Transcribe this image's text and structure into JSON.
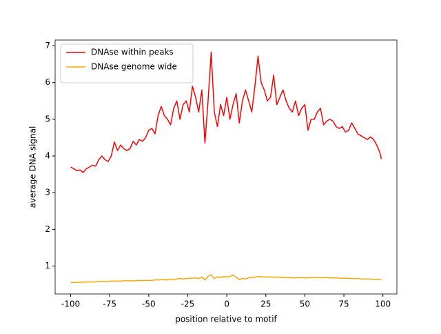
{
  "chart_data": {
    "type": "line",
    "xlabel": "position relative to motif",
    "ylabel": "average DNA signal",
    "x": [
      -100,
      -98,
      -96,
      -94,
      -92,
      -90,
      -88,
      -86,
      -84,
      -82,
      -80,
      -78,
      -76,
      -74,
      -72,
      -70,
      -68,
      -66,
      -64,
      -62,
      -60,
      -58,
      -56,
      -54,
      -52,
      -50,
      -48,
      -46,
      -44,
      -42,
      -40,
      -38,
      -36,
      -34,
      -32,
      -30,
      -28,
      -26,
      -24,
      -22,
      -20,
      -18,
      -16,
      -14,
      -12,
      -10,
      -8,
      -6,
      -4,
      -2,
      0,
      2,
      4,
      6,
      8,
      10,
      12,
      14,
      16,
      18,
      20,
      22,
      24,
      26,
      28,
      30,
      32,
      34,
      36,
      38,
      40,
      42,
      44,
      46,
      48,
      50,
      52,
      54,
      56,
      58,
      60,
      62,
      64,
      66,
      68,
      70,
      72,
      74,
      76,
      78,
      80,
      82,
      84,
      86,
      88,
      90,
      92,
      94,
      96,
      98,
      99
    ],
    "series": [
      {
        "name": "DNAse within peaks",
        "color": "#ff0000",
        "values": [
          3.7,
          3.65,
          3.6,
          3.62,
          3.55,
          3.65,
          3.7,
          3.75,
          3.72,
          3.9,
          4.0,
          3.9,
          3.85,
          4.0,
          4.38,
          4.15,
          4.3,
          4.2,
          4.15,
          4.2,
          4.4,
          4.3,
          4.45,
          4.4,
          4.5,
          4.7,
          4.75,
          4.6,
          5.1,
          5.35,
          5.1,
          5.0,
          4.85,
          5.3,
          5.5,
          5.0,
          5.4,
          5.5,
          5.2,
          5.9,
          5.6,
          5.2,
          5.8,
          4.35,
          5.5,
          6.83,
          5.2,
          4.8,
          5.4,
          5.1,
          5.6,
          5.0,
          5.4,
          5.7,
          4.9,
          5.5,
          5.8,
          5.5,
          5.2,
          5.9,
          6.72,
          6.0,
          5.8,
          5.5,
          5.6,
          6.2,
          5.4,
          5.6,
          5.8,
          5.5,
          5.3,
          5.2,
          5.5,
          5.1,
          5.3,
          5.4,
          4.7,
          5.0,
          5.0,
          5.2,
          5.3,
          4.85,
          4.95,
          5.0,
          4.95,
          4.8,
          4.75,
          4.8,
          4.65,
          4.7,
          4.9,
          4.75,
          4.6,
          4.55,
          4.5,
          4.45,
          4.52,
          4.45,
          4.3,
          4.1,
          3.92
        ]
      },
      {
        "name": "DNAse genome wide",
        "color": "#ffa500",
        "values": [
          0.55,
          0.55,
          0.56,
          0.56,
          0.56,
          0.57,
          0.57,
          0.57,
          0.57,
          0.58,
          0.58,
          0.58,
          0.58,
          0.59,
          0.59,
          0.59,
          0.59,
          0.6,
          0.6,
          0.6,
          0.6,
          0.6,
          0.61,
          0.61,
          0.61,
          0.61,
          0.61,
          0.62,
          0.62,
          0.63,
          0.63,
          0.62,
          0.64,
          0.64,
          0.65,
          0.66,
          0.65,
          0.66,
          0.67,
          0.67,
          0.68,
          0.66,
          0.7,
          0.62,
          0.72,
          0.76,
          0.66,
          0.71,
          0.68,
          0.72,
          0.7,
          0.72,
          0.75,
          0.7,
          0.63,
          0.66,
          0.65,
          0.68,
          0.7,
          0.69,
          0.72,
          0.71,
          0.7,
          0.7,
          0.71,
          0.69,
          0.7,
          0.7,
          0.69,
          0.69,
          0.69,
          0.68,
          0.68,
          0.69,
          0.69,
          0.68,
          0.68,
          0.69,
          0.69,
          0.69,
          0.68,
          0.69,
          0.69,
          0.68,
          0.68,
          0.68,
          0.67,
          0.67,
          0.67,
          0.66,
          0.66,
          0.66,
          0.66,
          0.65,
          0.65,
          0.65,
          0.65,
          0.64,
          0.64,
          0.64,
          0.63
        ]
      }
    ],
    "xlim": [
      -109.95,
      108.95
    ],
    "ylim": [
      0.24,
      7.16
    ],
    "xticks": [
      -100,
      -75,
      -50,
      -25,
      0,
      25,
      50,
      75,
      100
    ],
    "yticks": [
      1,
      2,
      3,
      4,
      5,
      6,
      7
    ],
    "legend": "upper left"
  }
}
